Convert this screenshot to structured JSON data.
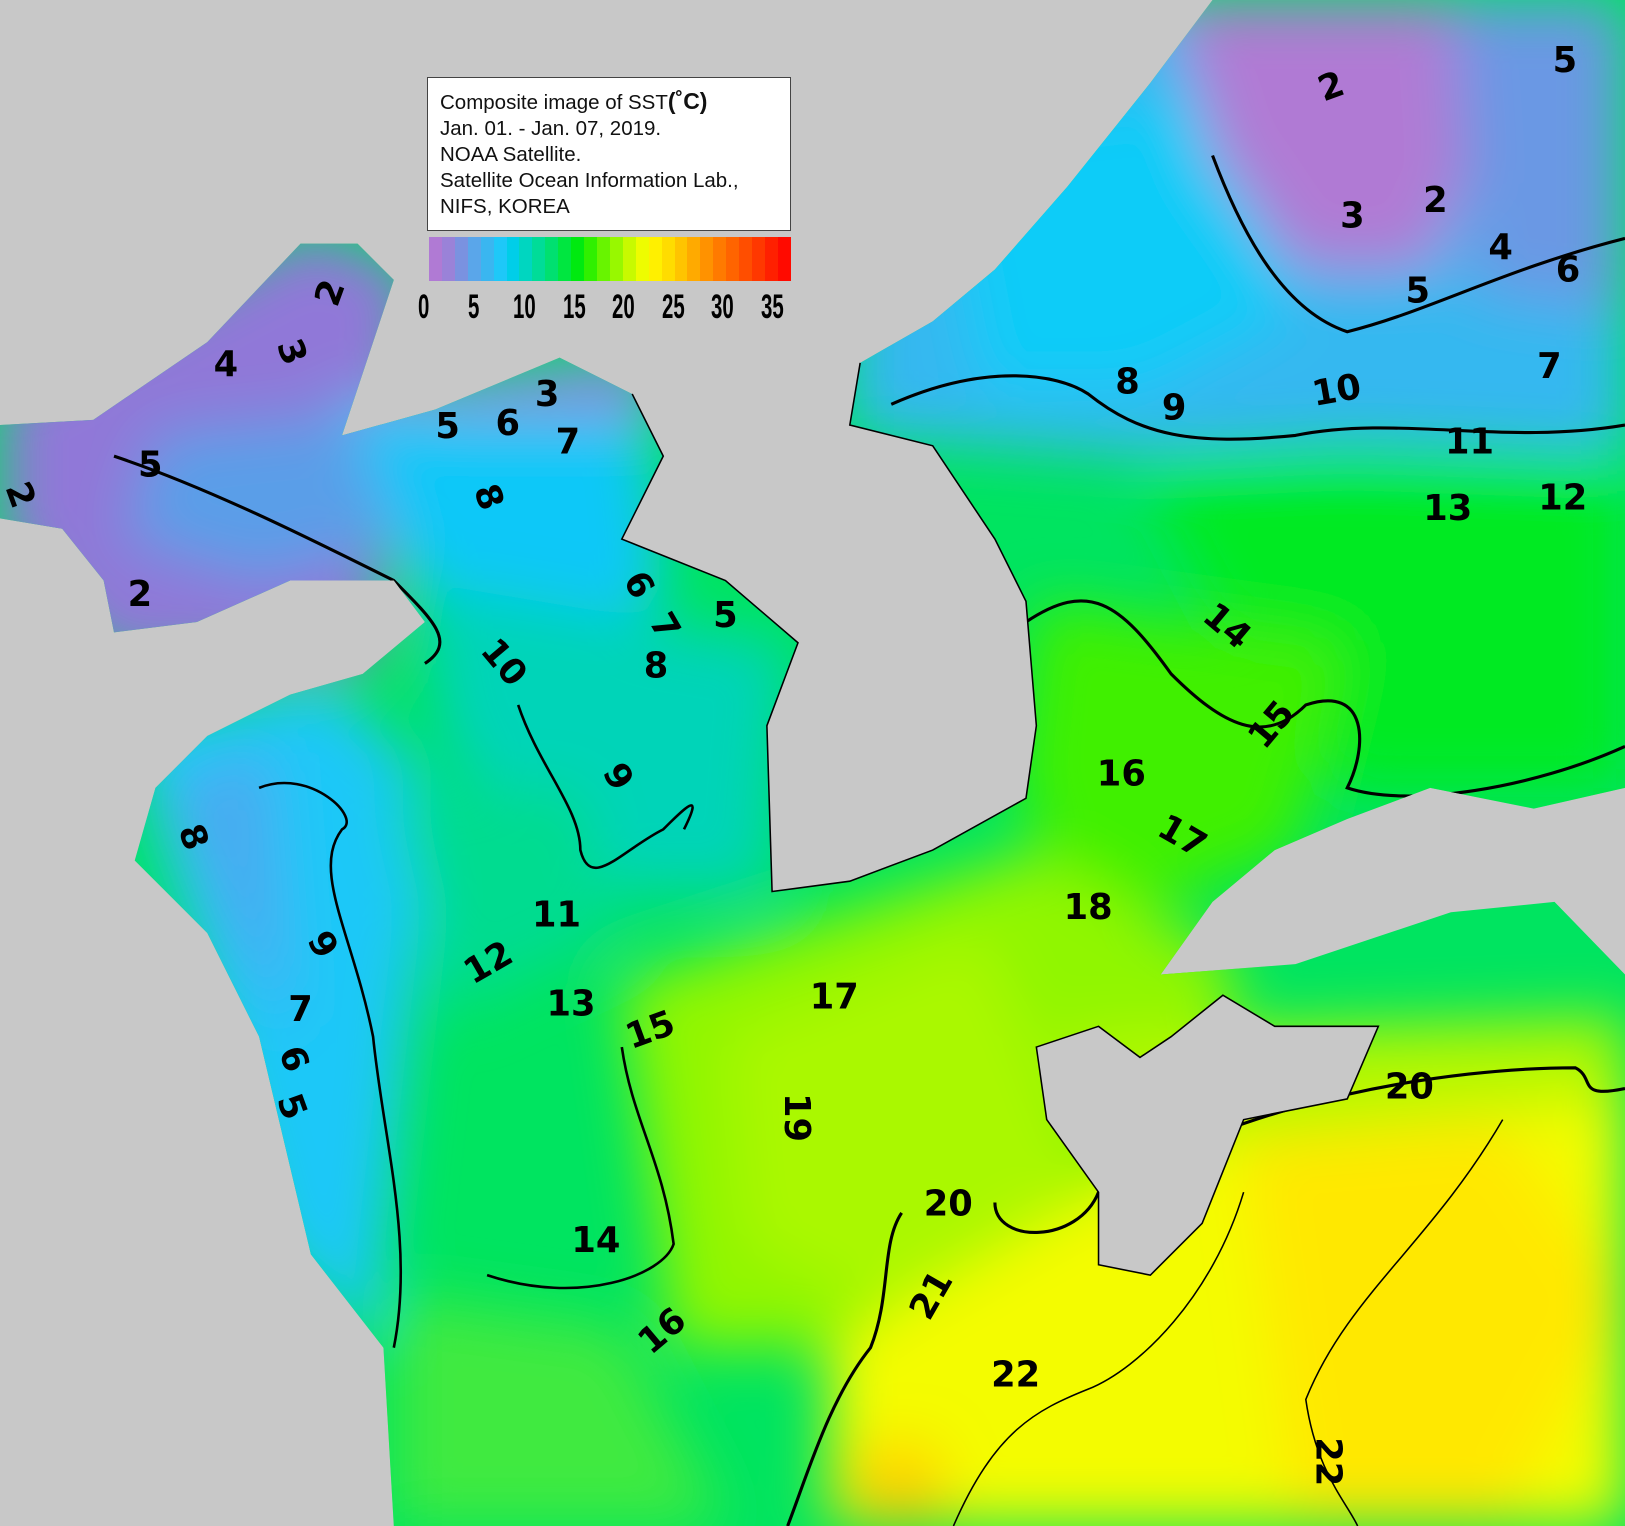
{
  "legend": {
    "title": "Composite image of SST",
    "unit": "(˚C)",
    "period": "Jan. 01. - Jan. 07, 2019.",
    "source": "NOAA Satellite.",
    "lab": "Satellite Ocean Information Lab.,",
    "org": "NIFS, KOREA",
    "colorbar_ticks": [
      "0",
      "5",
      "10",
      "15",
      "20",
      "25",
      "30",
      "35"
    ],
    "colorbar_range": [
      0,
      35
    ],
    "colorbar_colors": [
      "#b07ad4",
      "#9a82d8",
      "#7a92e0",
      "#5aa6ea",
      "#3ab6f0",
      "#1ec8f8",
      "#00cee8",
      "#00d6c0",
      "#00dc98",
      "#00e070",
      "#00e640",
      "#00ea10",
      "#30f000",
      "#68f400",
      "#98f800",
      "#c8fa00",
      "#eefc00",
      "#fff000",
      "#ffdc00",
      "#ffc400",
      "#ffaa00",
      "#ff9200",
      "#ff7a00",
      "#ff6400",
      "#ff4e00",
      "#ff3800",
      "#ff2000",
      "#ff0a00"
    ]
  },
  "map": {
    "land_color": "#c8c8c8",
    "contour_labels": [
      "2",
      "5",
      "3",
      "2",
      "4",
      "6",
      "5",
      "7",
      "8",
      "9",
      "10",
      "11",
      "12",
      "13",
      "14",
      "15",
      "16",
      "17",
      "18",
      "17",
      "19",
      "20",
      "21",
      "22",
      "22",
      "20",
      "2",
      "4",
      "3",
      "5",
      "2",
      "2",
      "3",
      "5",
      "6",
      "7",
      "8",
      "6",
      "5",
      "7",
      "8",
      "10",
      "9",
      "8",
      "9",
      "7",
      "6",
      "5",
      "11",
      "12",
      "13",
      "15",
      "14",
      "16"
    ]
  }
}
